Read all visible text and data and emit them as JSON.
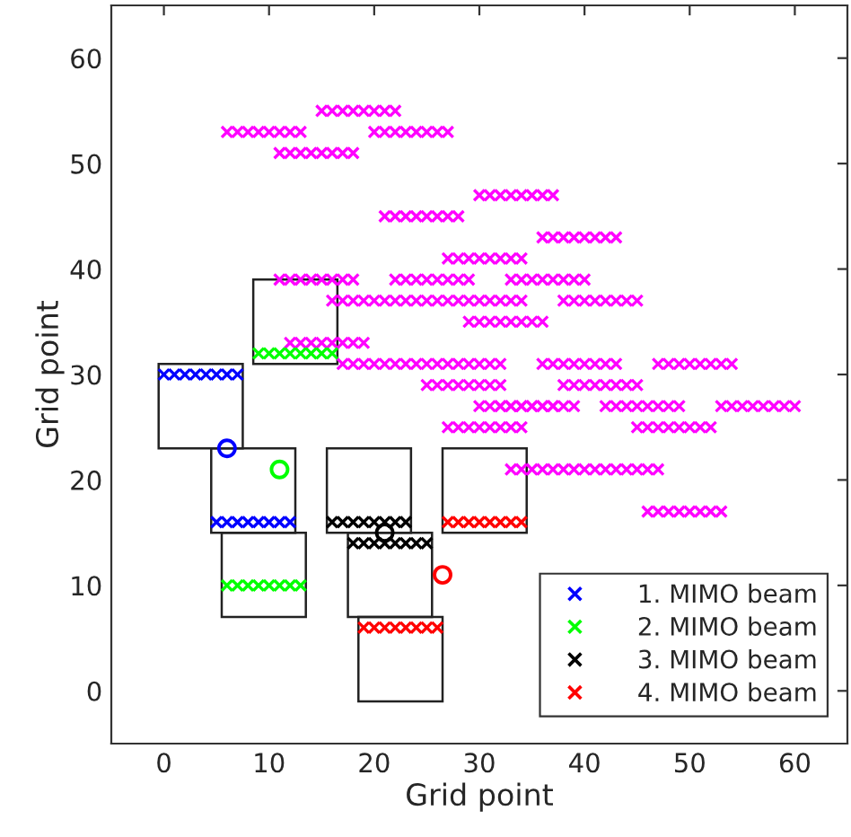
{
  "chart_data": {
    "type": "scatter",
    "xlabel": "Grid point",
    "ylabel": "Grid point",
    "xlim": [
      -5,
      65
    ],
    "ylim": [
      -5,
      65
    ],
    "xticks": [
      0,
      10,
      20,
      30,
      40,
      50,
      60
    ],
    "yticks": [
      0,
      10,
      20,
      30,
      40,
      50,
      60
    ],
    "grid": false,
    "legend": "bottom right",
    "series": [
      {
        "color": "#ff00ff",
        "marker": "cross",
        "x": [
          15,
          16,
          17,
          18,
          19,
          20,
          21,
          22,
          6,
          7,
          8,
          9,
          10,
          11,
          12,
          13,
          20,
          21,
          22,
          23,
          24,
          25,
          26,
          27,
          11,
          12,
          13,
          14,
          15,
          16,
          17,
          18,
          30,
          31,
          32,
          33,
          34,
          35,
          36,
          37,
          21,
          22,
          23,
          24,
          25,
          26,
          27,
          28,
          36,
          37,
          38,
          39,
          40,
          41,
          42,
          43,
          27,
          28,
          29,
          30,
          31,
          32,
          33,
          34,
          11,
          12,
          13,
          14,
          15,
          16,
          17,
          18,
          22,
          23,
          24,
          25,
          26,
          27,
          28,
          29,
          33,
          34,
          35,
          36,
          37,
          38,
          39,
          40,
          16,
          17,
          18,
          19,
          20,
          21,
          22,
          23,
          24,
          25,
          26,
          27,
          28,
          29,
          30,
          31,
          32,
          33,
          34,
          38,
          39,
          40,
          41,
          42,
          43,
          44,
          45,
          29,
          30,
          31,
          32,
          33,
          34,
          35,
          36,
          12,
          13,
          14,
          15,
          16,
          17,
          18,
          19,
          17,
          18,
          19,
          20,
          21,
          22,
          23,
          24,
          25,
          26,
          27,
          28,
          29,
          30,
          31,
          32,
          36,
          37,
          38,
          39,
          40,
          41,
          42,
          43,
          47,
          48,
          49,
          50,
          51,
          52,
          53,
          54,
          25,
          26,
          27,
          28,
          29,
          30,
          31,
          32,
          38,
          39,
          40,
          41,
          42,
          43,
          44,
          45,
          30,
          31,
          32,
          33,
          34,
          35,
          36,
          37,
          32,
          33,
          34,
          35,
          36,
          37,
          38,
          39,
          42,
          43,
          44,
          45,
          46,
          47,
          48,
          49,
          53,
          54,
          55,
          56,
          57,
          58,
          59,
          60,
          27,
          28,
          29,
          30,
          31,
          32,
          33,
          34,
          45,
          46,
          47,
          48,
          49,
          50,
          51,
          52,
          33,
          34,
          35,
          36,
          37,
          38,
          39,
          40,
          41,
          42,
          43,
          44,
          45,
          46,
          47,
          46,
          47,
          48,
          49,
          50,
          51,
          52,
          53
        ],
        "values": [
          55,
          55,
          55,
          55,
          55,
          55,
          55,
          55,
          53,
          53,
          53,
          53,
          53,
          53,
          53,
          53,
          53,
          53,
          53,
          53,
          53,
          53,
          53,
          53,
          51,
          51,
          51,
          51,
          51,
          51,
          51,
          51,
          47,
          47,
          47,
          47,
          47,
          47,
          47,
          47,
          45,
          45,
          45,
          45,
          45,
          45,
          45,
          45,
          43,
          43,
          43,
          43,
          43,
          43,
          43,
          43,
          41,
          41,
          41,
          41,
          41,
          41,
          41,
          41,
          39,
          39,
          39,
          39,
          39,
          39,
          39,
          39,
          39,
          39,
          39,
          39,
          39,
          39,
          39,
          39,
          39,
          39,
          39,
          39,
          39,
          39,
          39,
          39,
          37,
          37,
          37,
          37,
          37,
          37,
          37,
          37,
          37,
          37,
          37,
          37,
          37,
          37,
          37,
          37,
          37,
          37,
          37,
          37,
          37,
          37,
          37,
          37,
          37,
          37,
          37,
          35,
          35,
          35,
          35,
          35,
          35,
          35,
          35,
          33,
          33,
          33,
          33,
          33,
          33,
          33,
          33,
          31,
          31,
          31,
          31,
          31,
          31,
          31,
          31,
          31,
          31,
          31,
          31,
          31,
          31,
          31,
          31,
          31,
          31,
          31,
          31,
          31,
          31,
          31,
          31,
          31,
          31,
          31,
          31,
          31,
          31,
          31,
          31,
          29,
          29,
          29,
          29,
          29,
          29,
          29,
          29,
          29,
          29,
          29,
          29,
          29,
          29,
          29,
          29,
          27,
          27,
          27,
          27,
          27,
          27,
          27,
          27,
          27,
          27,
          27,
          27,
          27,
          27,
          27,
          27,
          27,
          27,
          27,
          27,
          27,
          27,
          27,
          27,
          27,
          27,
          27,
          27,
          27,
          27,
          27,
          27,
          25,
          25,
          25,
          25,
          25,
          25,
          25,
          25,
          25,
          25,
          25,
          25,
          25,
          25,
          25,
          25,
          21,
          21,
          21,
          21,
          21,
          21,
          21,
          21,
          21,
          21,
          21,
          21,
          21,
          21,
          21,
          17,
          17,
          17,
          17,
          17,
          17,
          17,
          17
        ]
      },
      {
        "name": "1. MIMO beam",
        "color": "#0000ff",
        "marker": "cross",
        "x": [
          0,
          1,
          2,
          3,
          4,
          5,
          6,
          7,
          5,
          6,
          7,
          8,
          9,
          10,
          11,
          12
        ],
        "values": [
          30,
          30,
          30,
          30,
          30,
          30,
          30,
          30,
          16,
          16,
          16,
          16,
          16,
          16,
          16,
          16
        ]
      },
      {
        "name": "2. MIMO beam",
        "color": "#00ff00",
        "marker": "cross",
        "x": [
          9,
          10,
          11,
          12,
          13,
          14,
          15,
          16,
          6,
          7,
          8,
          9,
          10,
          11,
          12,
          13
        ],
        "values": [
          32,
          32,
          32,
          32,
          32,
          32,
          32,
          32,
          10,
          10,
          10,
          10,
          10,
          10,
          10,
          10
        ]
      },
      {
        "name": "3. MIMO beam",
        "color": "#000000",
        "marker": "cross",
        "x": [
          16,
          17,
          18,
          19,
          20,
          21,
          22,
          23,
          18,
          19,
          20,
          21,
          22,
          23,
          24,
          25
        ],
        "values": [
          16,
          16,
          16,
          16,
          16,
          16,
          16,
          16,
          14,
          14,
          14,
          14,
          14,
          14,
          14,
          14
        ]
      },
      {
        "name": "4. MIMO beam",
        "color": "#ff0000",
        "marker": "cross",
        "x": [
          27,
          28,
          29,
          30,
          31,
          32,
          33,
          34,
          19,
          20,
          21,
          22,
          23,
          24,
          25,
          26
        ],
        "values": [
          16,
          16,
          16,
          16,
          16,
          16,
          16,
          16,
          6,
          6,
          6,
          6,
          6,
          6,
          6,
          6
        ]
      },
      {
        "color": "#0000ff",
        "marker": "circle",
        "x": [
          6
        ],
        "values": [
          23
        ]
      },
      {
        "color": "#00ff00",
        "marker": "circle",
        "x": [
          11
        ],
        "values": [
          21
        ]
      },
      {
        "color": "#000000",
        "marker": "circle",
        "x": [
          21
        ],
        "values": [
          15
        ]
      },
      {
        "color": "#ff0000",
        "marker": "circle",
        "x": [
          26.5
        ],
        "values": [
          11
        ]
      }
    ]
  }
}
